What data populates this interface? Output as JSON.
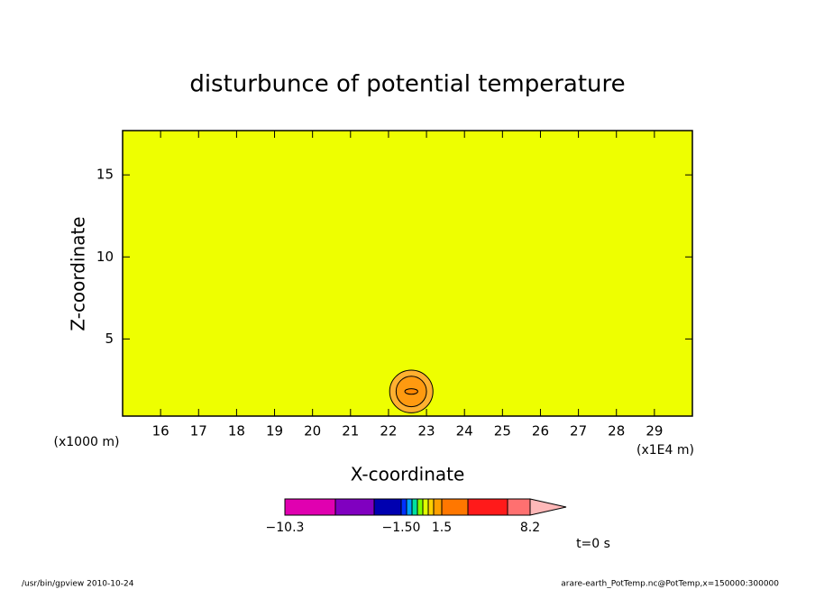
{
  "chart_data": {
    "type": "contour",
    "title": "disturbunce of potential temperature",
    "xlabel": "X-coordinate",
    "ylabel": "Z-coordinate",
    "xunit": "(x1E4 m)",
    "yunit": "(x1000 m)",
    "xlim": [
      15,
      30
    ],
    "ylim": [
      0.3,
      17.7
    ],
    "xticks": [
      16,
      17,
      18,
      19,
      20,
      21,
      22,
      23,
      24,
      25,
      26,
      27,
      28,
      29
    ],
    "yticks": [
      5,
      10,
      15
    ],
    "background_color": "#eeff00",
    "contours": [
      {
        "x": 22.6,
        "z": 1.8,
        "rx": 0.57,
        "rz": 1.3,
        "color": "#ffb030"
      },
      {
        "x": 22.6,
        "z": 1.8,
        "rx": 0.4,
        "rz": 0.93,
        "color": "#ff9a10"
      },
      {
        "x": 22.6,
        "z": 1.8,
        "rx": 0.17,
        "rz": 0.17,
        "color": "#ff8800"
      }
    ],
    "colorbar": {
      "colors": [
        "#e000b0",
        "#8000c0",
        "#0000b0",
        "#0030ff",
        "#00a0ff",
        "#00e0a0",
        "#80ff00",
        "#e0ff00",
        "#ffd000",
        "#ffa000",
        "#ff7700",
        "#ff1a1a",
        "#ff7070",
        "#ffb8b8"
      ],
      "ticks": [
        {
          "value": -10.3,
          "label": "−10.3"
        },
        {
          "value": -1.5,
          "label": "−1.50"
        },
        {
          "value": 1.5,
          "label": "1.5"
        },
        {
          "value": 8.2,
          "label": "8.2"
        }
      ]
    },
    "annotation": "t=0 s",
    "footer_left": "/usr/bin/gpview  2010-10-24",
    "footer_right": "arare-earth_PotTemp.nc@PotTemp,x=150000:300000"
  }
}
